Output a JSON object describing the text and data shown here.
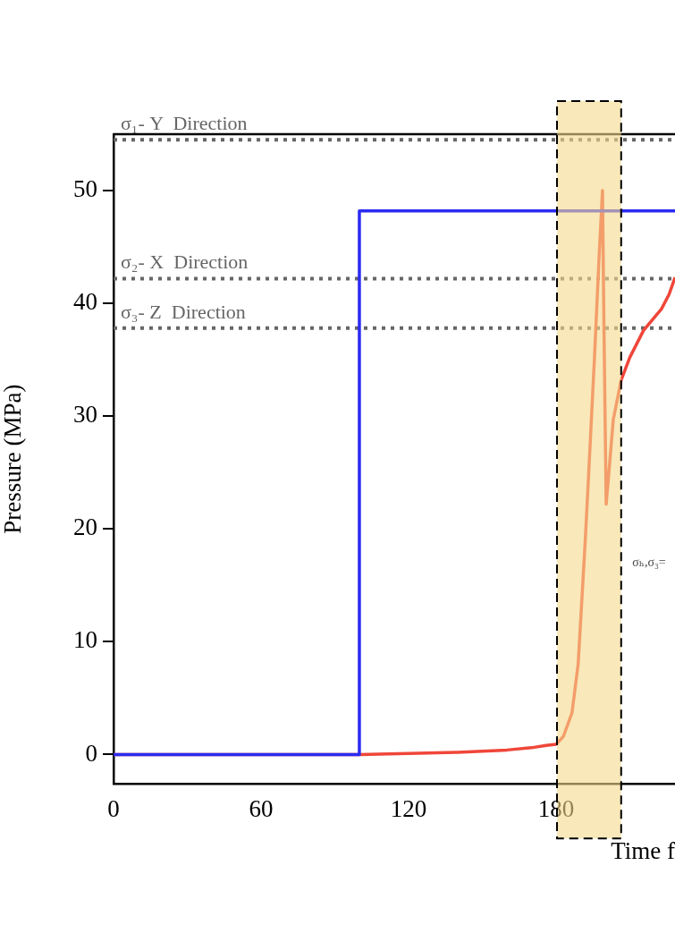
{
  "chart_data": {
    "type": "line",
    "xlabel": "Time f",
    "ylabel": "Pressure (MPa)",
    "xlim": [
      0,
      228.4
    ],
    "ylim": [
      -2.6,
      55
    ],
    "xticks": [
      0,
      60,
      120,
      180
    ],
    "yticks": [
      0,
      10,
      20,
      30,
      40,
      50
    ],
    "grid": false,
    "legend": false,
    "line_style": "solid",
    "marker": "none",
    "series": [
      {
        "color": "#2b2bf2",
        "x": [
          0,
          100,
          100,
          228.4
        ],
        "values": [
          0,
          0,
          48.2,
          48.2
        ]
      },
      {
        "color": "#f0463a",
        "x": [
          0,
          100,
          120,
          140,
          160,
          170,
          176,
          180,
          183,
          186.5,
          189,
          192,
          194,
          195.6,
          197.5,
          198.9,
          199.5,
          200.4,
          201.5,
          203.3,
          206.5,
          210,
          215.6,
          219,
          222.9,
          226,
          228.4
        ],
        "values": [
          0,
          0,
          0.1,
          0.2,
          0.4,
          0.6,
          0.8,
          0.9,
          1.6,
          3.7,
          8,
          19.4,
          28,
          35,
          44,
          50,
          38,
          22.2,
          25,
          29.7,
          33.2,
          35.2,
          37.6,
          38.5,
          39.5,
          40.8,
          42.3
        ]
      }
    ],
    "ref_lines": [
      {
        "axis": "y",
        "value": 54.5,
        "label": "σ₁- Y  Direction",
        "color": "#666666",
        "line_style": "dotted"
      },
      {
        "axis": "y",
        "value": 42.2,
        "label": "σ₂- X  Direction",
        "color": "#666666",
        "line_style": "dotted"
      },
      {
        "axis": "y",
        "value": 37.8,
        "label": "σ₃- Z  Direction",
        "color": "#666666",
        "line_style": "dotted"
      }
    ],
    "bands": [
      {
        "axis": "x",
        "from": 180.4,
        "to": 206.5,
        "color": "#f5d98a"
      }
    ],
    "annotations": [
      "σₕ,σ₃="
    ]
  }
}
